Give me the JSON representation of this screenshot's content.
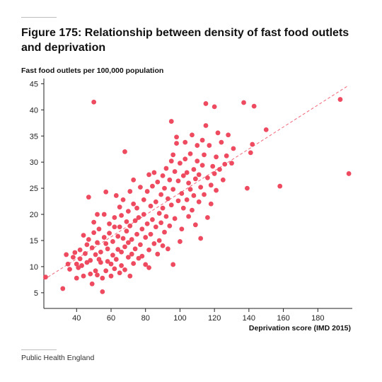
{
  "title": "Figure 175: Relationship between density of fast food outlets and deprivation",
  "source": "Public Health England",
  "colors": {
    "points": "#ef4b60",
    "trendline": "#ef4b60",
    "axis": "#222222"
  },
  "chart_data": {
    "type": "scatter",
    "title": "Figure 175: Relationship between density of fast food outlets and deprivation",
    "xlabel": "Deprivation score (IMD 2015)",
    "ylabel": "Fast food outlets per 100,000 population",
    "xlim": [
      21,
      200
    ],
    "ylim": [
      2,
      46
    ],
    "x_ticks": [
      40,
      60,
      80,
      100,
      120,
      140,
      160,
      180
    ],
    "y_ticks": [
      5,
      10,
      15,
      20,
      25,
      30,
      35,
      40,
      45
    ],
    "grid": false,
    "legend": "none",
    "trendline": {
      "style": "dashed",
      "from": [
        21,
        7.5
      ],
      "to": [
        197,
        44.5
      ]
    },
    "points": [
      [
        22,
        8
      ],
      [
        32,
        5.8
      ],
      [
        34,
        12.3
      ],
      [
        35,
        10.5
      ],
      [
        36,
        9.5
      ],
      [
        38,
        11.8
      ],
      [
        39,
        12.7
      ],
      [
        40,
        10.5
      ],
      [
        40,
        7.8
      ],
      [
        41,
        9.8
      ],
      [
        42,
        13.2
      ],
      [
        42,
        11.5
      ],
      [
        43,
        10.2
      ],
      [
        44,
        8.2
      ],
      [
        44,
        16
      ],
      [
        45,
        12.5
      ],
      [
        46,
        14.2
      ],
      [
        46,
        10.8
      ],
      [
        47,
        15.2
      ],
      [
        47,
        23.3
      ],
      [
        48,
        8.6
      ],
      [
        48,
        11.2
      ],
      [
        49,
        13.6
      ],
      [
        49,
        6.7
      ],
      [
        50,
        16.5
      ],
      [
        50,
        41.5
      ],
      [
        50,
        18.5
      ],
      [
        51,
        12.3
      ],
      [
        51,
        9.2
      ],
      [
        52,
        20
      ],
      [
        52,
        14.6
      ],
      [
        52,
        8.4
      ],
      [
        53,
        17.2
      ],
      [
        53,
        11.4
      ],
      [
        54,
        10.8
      ],
      [
        54,
        12.8
      ],
      [
        55,
        5.2
      ],
      [
        55,
        7.8
      ],
      [
        56,
        15.6
      ],
      [
        56,
        20
      ],
      [
        57,
        24.3
      ],
      [
        57,
        9.2
      ],
      [
        57,
        14.4
      ],
      [
        58,
        13.4
      ],
      [
        58,
        11
      ],
      [
        59,
        16.4
      ],
      [
        59,
        18.2
      ],
      [
        60,
        10.5
      ],
      [
        60,
        8.2
      ],
      [
        61,
        12.2
      ],
      [
        61,
        14.8
      ],
      [
        62,
        9.6
      ],
      [
        62,
        17.6
      ],
      [
        62,
        19.4
      ],
      [
        63,
        23.6
      ],
      [
        63,
        11.4
      ],
      [
        64,
        13.3
      ],
      [
        64,
        15.8
      ],
      [
        65,
        8.8
      ],
      [
        65,
        21.4
      ],
      [
        65,
        17.6
      ],
      [
        66,
        10.2
      ],
      [
        66,
        12.8
      ],
      [
        66,
        19.8
      ],
      [
        67,
        15.4
      ],
      [
        67,
        22.8
      ],
      [
        68,
        32
      ],
      [
        68,
        9.4
      ],
      [
        68,
        13.8
      ],
      [
        69,
        16.8
      ],
      [
        69,
        18.6
      ],
      [
        70,
        11.8
      ],
      [
        70,
        14.6
      ],
      [
        70,
        20.6
      ],
      [
        71,
        8.2
      ],
      [
        71,
        24.4
      ],
      [
        71,
        17.8
      ],
      [
        72,
        12.4
      ],
      [
        72,
        15.2
      ],
      [
        73,
        22
      ],
      [
        73,
        10.6
      ],
      [
        73,
        26.6
      ],
      [
        74,
        18.8
      ],
      [
        74,
        13.4
      ],
      [
        75,
        16.2
      ],
      [
        75,
        21.2
      ],
      [
        76,
        11.6
      ],
      [
        76,
        19.4
      ],
      [
        77,
        25.2
      ],
      [
        77,
        14.2
      ],
      [
        78,
        17.2
      ],
      [
        78,
        12
      ],
      [
        79,
        22.8
      ],
      [
        79,
        20
      ],
      [
        80,
        10.4
      ],
      [
        80,
        15.6
      ],
      [
        81,
        24.4
      ],
      [
        81,
        18.2
      ],
      [
        82,
        27.6
      ],
      [
        82,
        13.2
      ],
      [
        82,
        9.8
      ],
      [
        83,
        21.6
      ],
      [
        83,
        16.2
      ],
      [
        84,
        19
      ],
      [
        84,
        25.4
      ],
      [
        85,
        14.4
      ],
      [
        85,
        28
      ],
      [
        86,
        22.4
      ],
      [
        86,
        17.6
      ],
      [
        87,
        12.4
      ],
      [
        87,
        26.2
      ],
      [
        88,
        20.2
      ],
      [
        88,
        15
      ],
      [
        89,
        23.8
      ],
      [
        89,
        18.4
      ],
      [
        90,
        27.4
      ],
      [
        90,
        14
      ],
      [
        90,
        21.2
      ],
      [
        91,
        25
      ],
      [
        91,
        16.6
      ],
      [
        92,
        19.6
      ],
      [
        92,
        28.8
      ],
      [
        93,
        23
      ],
      [
        93,
        13.4
      ],
      [
        94,
        26.6
      ],
      [
        94,
        17.8
      ],
      [
        95,
        30.2
      ],
      [
        95,
        21.8
      ],
      [
        95,
        37.8
      ],
      [
        96,
        24.8
      ],
      [
        96,
        10.4
      ],
      [
        96,
        31.4
      ],
      [
        97,
        28.2
      ],
      [
        97,
        19.2
      ],
      [
        98,
        33.6
      ],
      [
        98,
        34.8
      ],
      [
        99,
        22.6
      ],
      [
        99,
        26.4
      ],
      [
        100,
        14.8
      ],
      [
        100,
        29.8
      ],
      [
        101,
        24
      ],
      [
        101,
        17.2
      ],
      [
        102,
        27.4
      ],
      [
        102,
        21.2
      ],
      [
        103,
        33.8
      ],
      [
        103,
        30.6
      ],
      [
        104,
        22.8
      ],
      [
        104,
        28
      ],
      [
        105,
        19.6
      ],
      [
        105,
        26
      ],
      [
        106,
        31.6
      ],
      [
        106,
        24.8
      ],
      [
        107,
        20.8
      ],
      [
        107,
        35.2
      ],
      [
        108,
        28.6
      ],
      [
        108,
        23.6
      ],
      [
        109,
        26.8
      ],
      [
        109,
        18
      ],
      [
        110,
        30.2
      ],
      [
        110,
        33.2
      ],
      [
        111,
        22.4
      ],
      [
        111,
        27.6
      ],
      [
        112,
        25.2
      ],
      [
        112,
        15.4
      ],
      [
        113,
        34.2
      ],
      [
        113,
        29.4
      ],
      [
        114,
        23.8
      ],
      [
        114,
        31.4
      ],
      [
        115,
        37
      ],
      [
        115,
        41.2
      ],
      [
        116,
        27
      ],
      [
        116,
        19.4
      ],
      [
        117,
        33.2
      ],
      [
        118,
        25.6
      ],
      [
        118,
        22
      ],
      [
        119,
        29.2
      ],
      [
        120,
        40.6
      ],
      [
        120,
        27.8
      ],
      [
        121,
        31
      ],
      [
        121,
        24.6
      ],
      [
        122,
        35.6
      ],
      [
        123,
        28.6
      ],
      [
        124,
        33.8
      ],
      [
        125,
        26.6
      ],
      [
        126,
        29.6
      ],
      [
        127,
        31.2
      ],
      [
        128,
        35.2
      ],
      [
        130,
        29.8
      ],
      [
        131,
        32.6
      ],
      [
        137,
        41.4
      ],
      [
        139,
        25
      ],
      [
        141,
        31.8
      ],
      [
        142,
        33.4
      ],
      [
        143,
        40.7
      ],
      [
        150,
        36.2
      ],
      [
        158,
        25.4
      ],
      [
        193,
        42
      ],
      [
        198,
        27.8
      ]
    ]
  }
}
